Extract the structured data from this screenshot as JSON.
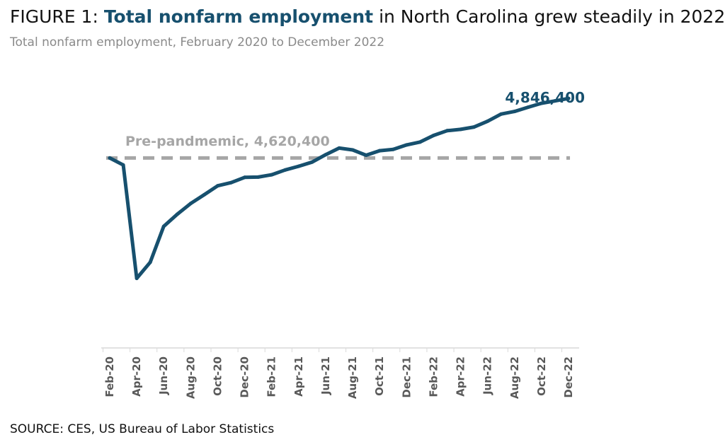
{
  "header": {
    "prefix": "FIGURE 1: ",
    "highlight": "Total nonfarm employment",
    "suffix": " in North Carolina grew steadily in 2022",
    "subtitle": "Total nonfarm employment, February 2020 to December 2022"
  },
  "footer": {
    "source": "SOURCE: CES, US Bureau of Labor Statistics"
  },
  "colors": {
    "line": "#17506e",
    "reference": "#a6a6a6",
    "axis": "#d9d9d9",
    "tick_text": "#595959"
  },
  "chart_data": {
    "type": "line",
    "title": "Total nonfarm employment in North Carolina grew steadily in 2022",
    "subtitle": "Total nonfarm employment, February 2020 to December 2022",
    "xlabel": "",
    "ylabel": "",
    "ylim": [
      3900000,
      4930000
    ],
    "grid": false,
    "x": [
      "Feb-20",
      "Mar-20",
      "Apr-20",
      "May-20",
      "Jun-20",
      "Jul-20",
      "Aug-20",
      "Sep-20",
      "Oct-20",
      "Nov-20",
      "Dec-20",
      "Jan-21",
      "Feb-21",
      "Mar-21",
      "Apr-21",
      "May-21",
      "Jun-21",
      "Jul-21",
      "Aug-21",
      "Sep-21",
      "Oct-21",
      "Nov-21",
      "Dec-21",
      "Jan-22",
      "Feb-22",
      "Mar-22",
      "Apr-22",
      "May-22",
      "Jun-22",
      "Jul-22",
      "Aug-22",
      "Sep-22",
      "Oct-22",
      "Nov-22",
      "Dec-22"
    ],
    "tick_labels": [
      "Feb-20",
      "Apr-20",
      "Jun-20",
      "Aug-20",
      "Oct-20",
      "Dec-20",
      "Feb-21",
      "Apr-21",
      "Jun-21",
      "Aug-21",
      "Oct-21",
      "Dec-21",
      "Feb-22",
      "Apr-22",
      "Jun-22",
      "Aug-22",
      "Oct-22",
      "Dec-22"
    ],
    "series": [
      {
        "name": "Total nonfarm employment",
        "values": [
          4620400,
          4594000,
          4164000,
          4225000,
          4361000,
          4407000,
          4448000,
          4481000,
          4515000,
          4527000,
          4547000,
          4548000,
          4557000,
          4575000,
          4589000,
          4605000,
          4633000,
          4658000,
          4651000,
          4631000,
          4648000,
          4653000,
          4670000,
          4681000,
          4706000,
          4724000,
          4729000,
          4738000,
          4760000,
          4787000,
          4797000,
          4813000,
          4828000,
          4837000,
          4846400
        ]
      }
    ],
    "reference_line": {
      "value": 4620400,
      "label": "Pre-pandmemic, 4,620,400"
    },
    "end_label": "4,846,400"
  }
}
